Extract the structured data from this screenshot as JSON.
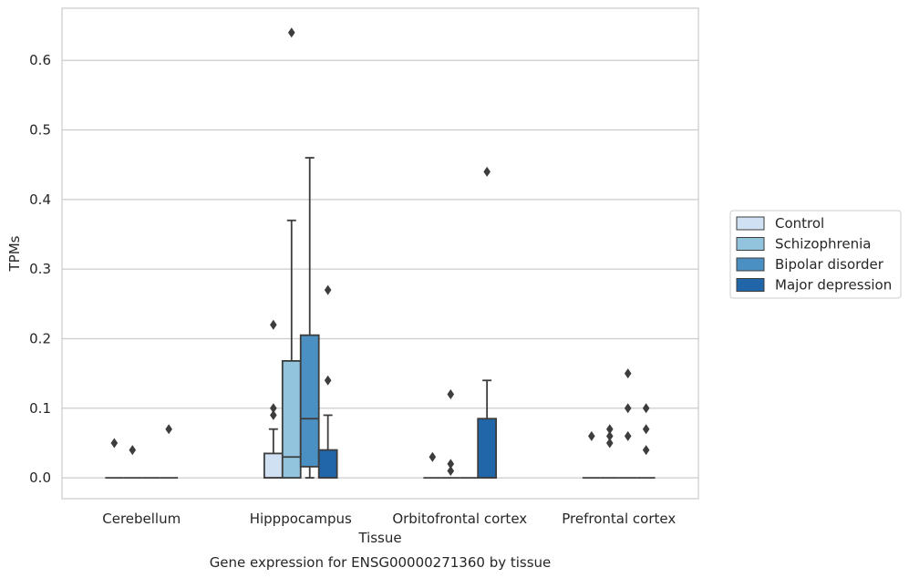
{
  "chart_data": {
    "type": "box",
    "title": "Gene expression for ENSG00000271360 by tissue",
    "xlabel": "Tissue",
    "ylabel": "TPMs",
    "ylim": [
      -0.03,
      0.675
    ],
    "yticks": [
      0.0,
      0.1,
      0.2,
      0.3,
      0.4,
      0.5,
      0.6
    ],
    "ytick_labels": [
      "0.0",
      "0.1",
      "0.2",
      "0.3",
      "0.4",
      "0.5",
      "0.6"
    ],
    "grid": true,
    "legend_position": "right",
    "categories": [
      "Cerebellum",
      "Hipppocampus",
      "Orbitofrontal cortex",
      "Prefrontal cortex"
    ],
    "series": [
      {
        "name": "Control",
        "color": "#cfe1f2",
        "boxes": [
          {
            "q1": 0,
            "median": 0,
            "q3": 0,
            "whisker_low": 0,
            "whisker_high": 0,
            "outliers": [
              0.05
            ]
          },
          {
            "q1": 0,
            "median": 0,
            "q3": 0.035,
            "whisker_low": 0,
            "whisker_high": 0.07,
            "outliers": [
              0.09,
              0.1,
              0.22
            ]
          },
          {
            "q1": 0,
            "median": 0,
            "q3": 0,
            "whisker_low": 0,
            "whisker_high": 0,
            "outliers": [
              0.03
            ]
          },
          {
            "q1": 0,
            "median": 0,
            "q3": 0,
            "whisker_low": 0,
            "whisker_high": 0,
            "outliers": [
              0.06
            ]
          }
        ]
      },
      {
        "name": "Schizophrenia",
        "color": "#93c4de",
        "boxes": [
          {
            "q1": 0,
            "median": 0,
            "q3": 0,
            "whisker_low": 0,
            "whisker_high": 0,
            "outliers": [
              0.04
            ]
          },
          {
            "q1": 0,
            "median": 0.03,
            "q3": 0.168,
            "whisker_low": 0,
            "whisker_high": 0.37,
            "outliers": [
              0.64
            ]
          },
          {
            "q1": 0,
            "median": 0,
            "q3": 0,
            "whisker_low": 0,
            "whisker_high": 0,
            "outliers": [
              0.01,
              0.02,
              0.12
            ]
          },
          {
            "q1": 0,
            "median": 0,
            "q3": 0,
            "whisker_low": 0,
            "whisker_high": 0,
            "outliers": [
              0.05,
              0.06,
              0.07
            ]
          }
        ]
      },
      {
        "name": "Bipolar disorder",
        "color": "#4a90c2",
        "boxes": [
          {
            "q1": 0,
            "median": 0,
            "q3": 0,
            "whisker_low": 0,
            "whisker_high": 0,
            "outliers": []
          },
          {
            "q1": 0.016,
            "median": 0.085,
            "q3": 0.205,
            "whisker_low": 0,
            "whisker_high": 0.46,
            "outliers": []
          },
          {
            "q1": 0,
            "median": 0,
            "q3": 0,
            "whisker_low": 0,
            "whisker_high": 0,
            "outliers": []
          },
          {
            "q1": 0,
            "median": 0,
            "q3": 0,
            "whisker_low": 0,
            "whisker_high": 0,
            "outliers": [
              0.06,
              0.1,
              0.15
            ]
          }
        ]
      },
      {
        "name": "Major depression",
        "color": "#2166a8",
        "boxes": [
          {
            "q1": 0,
            "median": 0,
            "q3": 0,
            "whisker_low": 0,
            "whisker_high": 0,
            "outliers": [
              0.07
            ]
          },
          {
            "q1": 0,
            "median": 0,
            "q3": 0.04,
            "whisker_low": 0,
            "whisker_high": 0.09,
            "outliers": [
              0.14,
              0.27
            ]
          },
          {
            "q1": 0,
            "median": 0,
            "q3": 0.085,
            "whisker_low": 0,
            "whisker_high": 0.14,
            "outliers": [
              0.44
            ]
          },
          {
            "q1": 0,
            "median": 0,
            "q3": 0,
            "whisker_low": 0,
            "whisker_high": 0,
            "outliers": [
              0.04,
              0.07,
              0.1
            ]
          }
        ]
      }
    ]
  }
}
